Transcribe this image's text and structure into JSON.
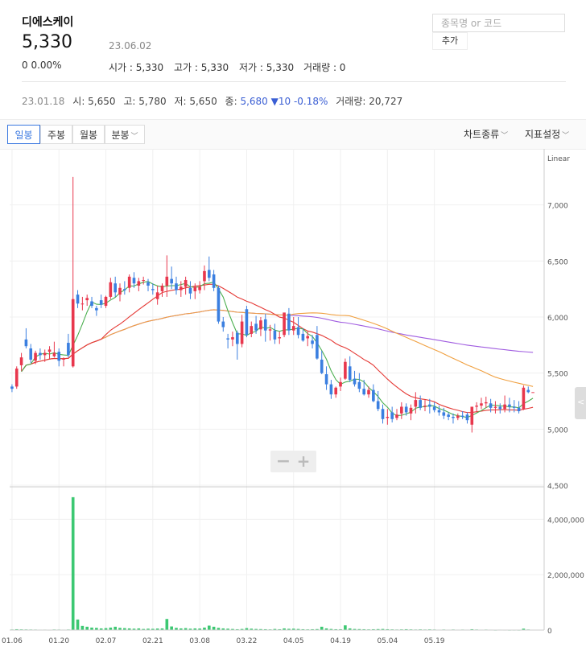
{
  "header": {
    "name": "디에스케이",
    "price": "5,330",
    "date": "23.06.02",
    "change": "0 0.00%",
    "open_label": "시가",
    "open": "5,330",
    "high_label": "고가",
    "high": "5,330",
    "low_label": "저가",
    "low": "5,330",
    "vol_label": "거래량",
    "vol": "0"
  },
  "search": {
    "placeholder": "종목명 or 코드",
    "add_label": "추가"
  },
  "history": {
    "date": "23.01.18",
    "open_label": "시",
    "open": "5,650",
    "high_label": "고",
    "high": "5,780",
    "low_label": "저",
    "low": "5,650",
    "close_label": "종",
    "close": "5,680",
    "change": "▼10 -0.18%",
    "vol_label": "거래량",
    "vol": "20,727"
  },
  "toolbar": {
    "tabs": [
      "일봉",
      "주봉",
      "월봉",
      "분봉"
    ],
    "active": "일봉",
    "chart_type_label": "차트종류",
    "indicator_label": "지표설정"
  },
  "colors": {
    "up": "#e8374d",
    "down": "#3b7fe0",
    "ma5": "#4caf50",
    "ma20": "#e53935",
    "ma60": "#f0a040",
    "ma120": "#a05ce0",
    "volume": "#3cc872"
  },
  "chart_data": {
    "type": "candlestick",
    "scale_label": "Linear",
    "price_ticks": [
      "7,000",
      "6,500",
      "6,000",
      "5,500",
      "5,000",
      "4,500"
    ],
    "price_tick_values": [
      7000,
      6500,
      6000,
      5500,
      5000,
      4500
    ],
    "price_range": [
      4500,
      7500
    ],
    "volume_ticks": [
      "4,000,000",
      "2,000,000",
      "0"
    ],
    "volume_tick_values": [
      4000000,
      2000000,
      0
    ],
    "volume_range": [
      0,
      5000000
    ],
    "x_labels": [
      "01.06",
      "01.20",
      "02.07",
      "02.21",
      "03.08",
      "03.22",
      "04.05",
      "04.19",
      "05.04",
      "05.19"
    ],
    "x_label_index": [
      0,
      10,
      20,
      30,
      40,
      50,
      60,
      70,
      80,
      90
    ],
    "candles": [
      [
        5380,
        5400,
        5330,
        5360
      ],
      [
        5380,
        5560,
        5360,
        5540
      ],
      [
        5570,
        5680,
        5520,
        5640
      ],
      [
        5800,
        5900,
        5720,
        5740
      ],
      [
        5720,
        5760,
        5590,
        5620
      ],
      [
        5610,
        5700,
        5580,
        5680
      ],
      [
        5680,
        5720,
        5620,
        5660
      ],
      [
        5660,
        5710,
        5600,
        5680
      ],
      [
        5690,
        5740,
        5630,
        5710
      ],
      [
        5650,
        5780,
        5640,
        5680
      ],
      [
        5690,
        5720,
        5560,
        5610
      ],
      [
        5620,
        5640,
        5560,
        5630
      ],
      [
        5770,
        5850,
        5640,
        5660
      ],
      [
        5560,
        7250,
        5550,
        6160
      ],
      [
        6200,
        6240,
        6080,
        6120
      ],
      [
        6120,
        6180,
        6060,
        6120
      ],
      [
        6150,
        6200,
        6100,
        6170
      ],
      [
        6140,
        6180,
        6080,
        6100
      ],
      [
        6080,
        6100,
        6010,
        6060
      ],
      [
        6150,
        6200,
        6080,
        6110
      ],
      [
        6100,
        6190,
        6080,
        6180
      ],
      [
        6180,
        6350,
        6160,
        6310
      ],
      [
        6300,
        6360,
        6180,
        6220
      ],
      [
        6200,
        6300,
        6140,
        6260
      ],
      [
        6250,
        6320,
        6200,
        6240
      ],
      [
        6260,
        6380,
        6220,
        6360
      ],
      [
        6350,
        6400,
        6260,
        6300
      ],
      [
        6280,
        6350,
        6230,
        6320
      ],
      [
        6330,
        6360,
        6290,
        6330
      ],
      [
        6310,
        6340,
        6230,
        6280
      ],
      [
        6250,
        6300,
        6200,
        6240
      ],
      [
        6160,
        6280,
        6110,
        6220
      ],
      [
        6230,
        6300,
        6180,
        6280
      ],
      [
        6280,
        6550,
        6180,
        6360
      ],
      [
        6340,
        6450,
        6250,
        6300
      ],
      [
        6300,
        6360,
        6200,
        6240
      ],
      [
        6240,
        6320,
        6180,
        6270
      ],
      [
        6270,
        6360,
        6200,
        6330
      ],
      [
        6260,
        6320,
        6160,
        6210
      ],
      [
        6230,
        6300,
        6160,
        6270
      ],
      [
        6240,
        6320,
        6210,
        6270
      ],
      [
        6320,
        6460,
        6240,
        6410
      ],
      [
        6420,
        6540,
        6320,
        6350
      ],
      [
        6380,
        6420,
        6230,
        6260
      ],
      [
        6260,
        6280,
        5940,
        5960
      ],
      [
        5960,
        6000,
        5870,
        5910
      ],
      [
        5810,
        5850,
        5720,
        5800
      ],
      [
        5800,
        5870,
        5740,
        5820
      ],
      [
        5860,
        5880,
        5620,
        5760
      ],
      [
        5760,
        6020,
        5730,
        5960
      ],
      [
        6070,
        6100,
        5820,
        5840
      ],
      [
        5850,
        5960,
        5820,
        5920
      ],
      [
        5940,
        6010,
        5850,
        5880
      ],
      [
        5890,
        6000,
        5830,
        5970
      ],
      [
        5980,
        6030,
        5780,
        5880
      ],
      [
        5880,
        5930,
        5790,
        5890
      ],
      [
        5880,
        5940,
        5760,
        5800
      ],
      [
        5810,
        5870,
        5760,
        5820
      ],
      [
        5840,
        6040,
        5820,
        6040
      ],
      [
        6030,
        6080,
        5840,
        5880
      ],
      [
        5880,
        6000,
        5840,
        5920
      ],
      [
        5910,
        6000,
        5810,
        5840
      ],
      [
        5850,
        5900,
        5780,
        5790
      ],
      [
        5810,
        5870,
        5740,
        5830
      ],
      [
        5790,
        5840,
        5720,
        5760
      ],
      [
        5840,
        5920,
        5620,
        5630
      ],
      [
        5620,
        5700,
        5490,
        5500
      ],
      [
        5490,
        5560,
        5350,
        5400
      ],
      [
        5400,
        5440,
        5270,
        5310
      ],
      [
        5310,
        5380,
        5280,
        5370
      ],
      [
        5380,
        5460,
        5340,
        5420
      ],
      [
        5450,
        5630,
        5440,
        5600
      ],
      [
        5560,
        5650,
        5420,
        5440
      ],
      [
        5450,
        5520,
        5380,
        5400
      ],
      [
        5420,
        5500,
        5330,
        5360
      ],
      [
        5360,
        5440,
        5300,
        5310
      ],
      [
        5310,
        5380,
        5280,
        5350
      ],
      [
        5350,
        5400,
        5240,
        5250
      ],
      [
        5250,
        5340,
        5160,
        5180
      ],
      [
        5180,
        5220,
        5050,
        5090
      ],
      [
        5100,
        5180,
        5040,
        5110
      ],
      [
        5150,
        5200,
        5060,
        5090
      ],
      [
        5100,
        5180,
        5080,
        5130
      ],
      [
        5140,
        5240,
        5090,
        5200
      ],
      [
        5200,
        5230,
        5120,
        5150
      ],
      [
        5140,
        5220,
        5080,
        5190
      ],
      [
        5200,
        5330,
        5140,
        5260
      ],
      [
        5260,
        5300,
        5170,
        5190
      ],
      [
        5200,
        5260,
        5160,
        5210
      ],
      [
        5220,
        5270,
        5140,
        5200
      ],
      [
        5200,
        5240,
        5150,
        5170
      ],
      [
        5170,
        5210,
        5120,
        5150
      ],
      [
        5150,
        5190,
        5090,
        5120
      ],
      [
        5130,
        5150,
        5080,
        5110
      ],
      [
        5110,
        5140,
        5050,
        5100
      ],
      [
        5100,
        5140,
        5080,
        5120
      ],
      [
        5120,
        5160,
        5090,
        5110
      ],
      [
        5130,
        5150,
        5050,
        5080
      ],
      [
        5040,
        5200,
        4970,
        5200
      ],
      [
        5200,
        5240,
        5150,
        5210
      ],
      [
        5210,
        5280,
        5180,
        5230
      ],
      [
        5230,
        5290,
        5190,
        5240
      ],
      [
        5230,
        5270,
        5150,
        5190
      ],
      [
        5190,
        5250,
        5140,
        5200
      ],
      [
        5200,
        5230,
        5140,
        5180
      ],
      [
        5180,
        5300,
        5150,
        5220
      ],
      [
        5220,
        5280,
        5150,
        5200
      ],
      [
        5200,
        5260,
        5150,
        5190
      ],
      [
        5190,
        5250,
        5140,
        5160
      ],
      [
        5180,
        5390,
        5170,
        5370
      ],
      [
        5350,
        5380,
        5320,
        5330
      ],
      [
        5330,
        5330,
        5330,
        5330
      ]
    ],
    "volumes": [
      20000,
      30000,
      25000,
      22000,
      20000,
      18000,
      15000,
      16000,
      14000,
      20727,
      18000,
      15000,
      20000,
      4800000,
      380000,
      150000,
      120000,
      90000,
      80000,
      60000,
      70000,
      90000,
      120000,
      80000,
      70000,
      60000,
      50000,
      60000,
      40000,
      50000,
      45000,
      55000,
      60000,
      400000,
      130000,
      80000,
      60000,
      70000,
      50000,
      60000,
      55000,
      90000,
      160000,
      120000,
      80000,
      60000,
      50000,
      40000,
      30000,
      40000,
      70000,
      50000,
      40000,
      35000,
      30000,
      25000,
      40000,
      30000,
      60000,
      45000,
      50000,
      40000,
      30000,
      25000,
      30000,
      35000,
      120000,
      60000,
      40000,
      30000,
      30000,
      170000,
      60000,
      40000,
      35000,
      30000,
      25000,
      30000,
      35000,
      40000,
      30000,
      25000,
      20000,
      25000,
      30000,
      25000,
      20000,
      25000,
      20000,
      25000,
      20000,
      15000,
      20000,
      15000,
      20000,
      15000,
      18000,
      15000,
      30000,
      20000,
      15000,
      18000,
      15000,
      12000,
      15000,
      14000,
      12000,
      13000,
      12000,
      50000,
      20000,
      0
    ]
  }
}
